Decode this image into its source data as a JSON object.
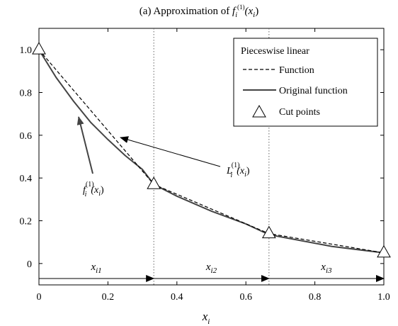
{
  "chart_data": {
    "type": "line",
    "title": "(a) Approximation of ",
    "title_math": {
      "base": "f",
      "sub": "i",
      "sup": "(1)",
      "arg": "(x",
      "arg_sub": "i",
      "arg_close": ")"
    },
    "xlabel": {
      "base": "x",
      "sub": "i"
    },
    "ylabel": "",
    "xlim": [
      0,
      1
    ],
    "ylim": [
      -0.1,
      1.1
    ],
    "x_ticks": [
      "0",
      "0.2",
      "0.4",
      "0.6",
      "0.8",
      "1.0"
    ],
    "x_tick_values": [
      0,
      0.2,
      0.4,
      0.6,
      0.8,
      1.0
    ],
    "y_ticks": [
      "0",
      "0.2",
      "0.4",
      "0.6",
      "0.8",
      "1.0"
    ],
    "y_tick_values": [
      0,
      0.2,
      0.4,
      0.6,
      0.8,
      1.0
    ],
    "grid": false,
    "series": [
      {
        "name": "Original function",
        "style": "solid",
        "color": "#444444",
        "x": [
          0,
          0.05,
          0.1,
          0.15,
          0.2,
          0.25,
          0.3,
          0.333,
          0.4,
          0.5,
          0.6,
          0.667,
          0.75,
          0.85,
          1.0
        ],
        "y": [
          1.0,
          0.87,
          0.76,
          0.66,
          0.58,
          0.505,
          0.44,
          0.37,
          0.315,
          0.245,
          0.185,
          0.135,
          0.11,
          0.08,
          0.05
        ]
      },
      {
        "name": "Pieceswise linear Function",
        "style": "dashed",
        "color": "#000000",
        "x": [
          0,
          0.333,
          0.667,
          1.0
        ],
        "y": [
          1.0,
          0.37,
          0.14,
          0.05
        ]
      }
    ],
    "cut_points": {
      "name": "Cut points",
      "x": [
        0,
        0.333,
        0.667,
        1.0
      ],
      "y": [
        1.0,
        0.37,
        0.14,
        0.05
      ]
    },
    "vlines": [
      0.333,
      0.667
    ],
    "legend": {
      "placement": "top-right",
      "line1": "Pieceswise linear",
      "line2": "Function",
      "line3": "Original function",
      "line4": "Cut points"
    },
    "annotations": {
      "L_label": {
        "base": "L",
        "sub": "i",
        "sup": "(1)",
        "arg": "(x",
        "arg_sub": "i",
        "arg_close": ")"
      },
      "f_label": {
        "base": "f",
        "sub": "i",
        "sup": "(1)",
        "arg": "(x",
        "arg_sub": "i",
        "arg_close": ")"
      }
    },
    "segments": [
      {
        "base": "x",
        "sub": "i1",
        "from": 0,
        "to": 0.333
      },
      {
        "base": "x",
        "sub": "i2",
        "from": 0.333,
        "to": 0.667
      },
      {
        "base": "x",
        "sub": "i3",
        "from": 0.667,
        "to": 1.0
      }
    ],
    "segment_arrow_y": -0.07
  }
}
